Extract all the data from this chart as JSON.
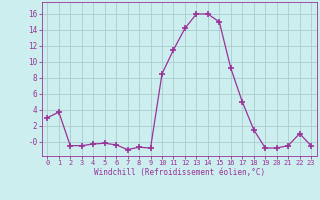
{
  "x": [
    0,
    1,
    2,
    3,
    4,
    5,
    6,
    7,
    8,
    9,
    10,
    11,
    12,
    13,
    14,
    15,
    16,
    17,
    18,
    19,
    20,
    21,
    22,
    23
  ],
  "y": [
    3.0,
    3.7,
    -0.5,
    -0.5,
    -0.3,
    -0.2,
    -0.4,
    -1.0,
    -0.7,
    -0.8,
    8.5,
    11.5,
    14.2,
    16.0,
    16.0,
    15.0,
    9.2,
    5.0,
    1.5,
    -0.8,
    -0.8,
    -0.5,
    1.0,
    -0.5
  ],
  "line_color": "#993399",
  "marker": "+",
  "marker_size": 4,
  "bg_color": "#cceeee",
  "grid_color": "#aacccc",
  "xlabel": "Windchill (Refroidissement éolien,°C)",
  "xlabel_color": "#993399",
  "tick_color": "#993399",
  "ytick_vals": [
    0,
    2,
    4,
    6,
    8,
    10,
    12,
    14,
    16
  ],
  "ytick_labels": [
    "-0",
    "2",
    "4",
    "6",
    "8",
    "10",
    "12",
    "14",
    "16"
  ],
  "ylim": [
    -1.8,
    17.5
  ],
  "xlim": [
    -0.5,
    23.5
  ]
}
